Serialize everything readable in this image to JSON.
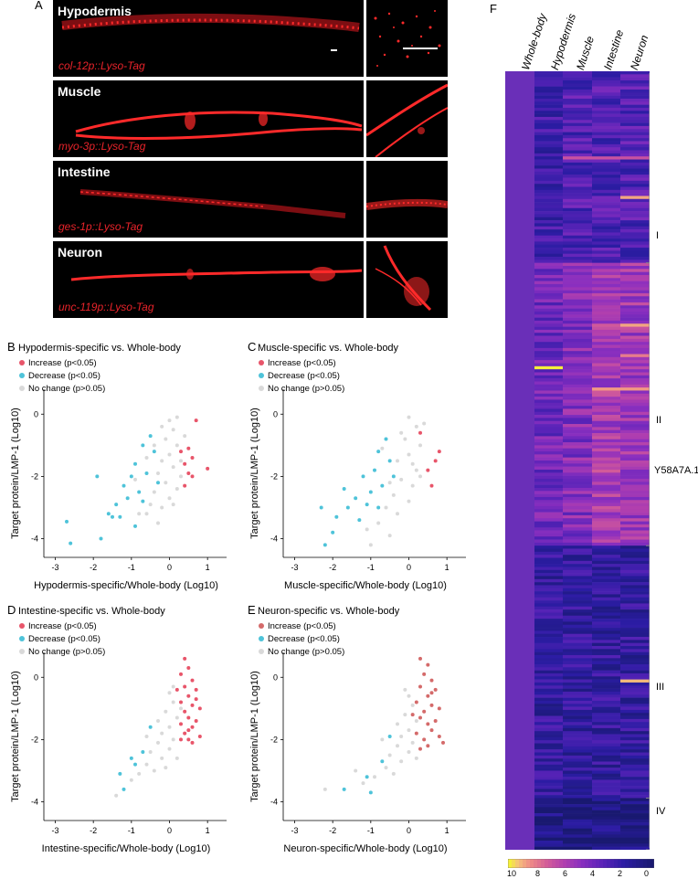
{
  "panel_letters": {
    "A": "A",
    "B": "B",
    "C": "C",
    "D": "D",
    "E": "E",
    "F": "F"
  },
  "micrographs": [
    {
      "tissue": "Hypodermis",
      "construct": "col-12p::Lyso-Tag"
    },
    {
      "tissue": "Muscle",
      "construct": "myo-3p::Lyso-Tag"
    },
    {
      "tissue": "Intestine",
      "construct": "ges-1p::Lyso-Tag"
    },
    {
      "tissue": "Neuron",
      "construct": "unc-119p::Lyso-Tag"
    }
  ],
  "colors": {
    "increase": "#e8556a",
    "increase_e": "#d46a6a",
    "decrease": "#4ec3d9",
    "nochange": "#d9d9d9",
    "lyso": "#e8232a"
  },
  "chart_data": [
    {
      "id": "B",
      "type": "scatter",
      "title": "Hypodermis-specific vs. Whole-body",
      "legend": {
        "increase": "Increase (p<0.05)",
        "decrease": "Decrease (p<0.05)",
        "nochange": "No change (p>0.05)"
      },
      "xlabel": "Hypodermis-specific/Whole-body (Log10)",
      "ylabel": "Target protein/LMP-1 (Log10)",
      "xlim": [
        -3.3,
        1.5
      ],
      "ylim": [
        -4.6,
        0.8
      ],
      "xticks": [
        -3,
        -2,
        -1,
        0,
        1
      ],
      "yticks": [
        0,
        -2,
        -4
      ],
      "series": {
        "increase": [
          [
            0.7,
            -0.2
          ],
          [
            0.5,
            -1.1
          ],
          [
            0.6,
            -1.4
          ],
          [
            0.4,
            -1.6
          ],
          [
            0.5,
            -1.9
          ],
          [
            0.6,
            -2.0
          ],
          [
            0.4,
            -2.3
          ],
          [
            1.0,
            -1.75
          ],
          [
            0.3,
            -1.2
          ]
        ],
        "decrease": [
          [
            -0.5,
            -0.7
          ],
          [
            -0.7,
            -1.0
          ],
          [
            -0.4,
            -1.2
          ],
          [
            -0.9,
            -1.6
          ],
          [
            -0.6,
            -1.9
          ],
          [
            -1.0,
            -2.0
          ],
          [
            -1.2,
            -2.3
          ],
          [
            -0.8,
            -2.5
          ],
          [
            -1.1,
            -2.7
          ],
          [
            -1.4,
            -2.9
          ],
          [
            -1.6,
            -3.2
          ],
          [
            -1.3,
            -3.3
          ],
          [
            -0.9,
            -3.6
          ],
          [
            -1.8,
            -4.0
          ],
          [
            -2.6,
            -4.15
          ],
          [
            -2.7,
            -3.45
          ],
          [
            -1.9,
            -2.0
          ],
          [
            -0.3,
            -2.2
          ],
          [
            -0.7,
            -2.8
          ],
          [
            -1.5,
            -3.3
          ]
        ],
        "nochange": [
          [
            0.0,
            -0.2
          ],
          [
            0.1,
            -0.5
          ],
          [
            -0.1,
            -0.8
          ],
          [
            0.2,
            -1.0
          ],
          [
            0.0,
            -1.3
          ],
          [
            -0.2,
            -1.5
          ],
          [
            0.1,
            -1.7
          ],
          [
            -0.3,
            -1.9
          ],
          [
            0.3,
            -2.0
          ],
          [
            -0.1,
            -2.2
          ],
          [
            0.2,
            -2.4
          ],
          [
            -0.4,
            -2.5
          ],
          [
            0.0,
            -2.7
          ],
          [
            -0.5,
            -2.9
          ],
          [
            -0.2,
            -3.0
          ],
          [
            -0.6,
            -3.2
          ],
          [
            -0.3,
            -3.5
          ],
          [
            -0.8,
            -3.2
          ],
          [
            0.4,
            -0.7
          ],
          [
            -0.2,
            -0.4
          ],
          [
            0.3,
            -1.5
          ],
          [
            -0.6,
            -1.4
          ],
          [
            0.1,
            -2.9
          ],
          [
            -0.9,
            -2.1
          ],
          [
            -0.4,
            -1.0
          ],
          [
            0.2,
            -0.1
          ]
        ]
      }
    },
    {
      "id": "C",
      "type": "scatter",
      "title": "Muscle-specific vs. Whole-body",
      "legend": {
        "increase": "Increase (p<0.05)",
        "decrease": "Decrease (p<0.05)",
        "nochange": "No change (p>0.05)"
      },
      "xlabel": "Muscle-specific/Whole-body (Log10)",
      "ylabel": "Target protein/LMP-1 (Log10)",
      "xlim": [
        -3.3,
        1.5
      ],
      "ylim": [
        -4.6,
        0.8
      ],
      "xticks": [
        -3,
        -2,
        -1,
        0,
        1
      ],
      "yticks": [
        0,
        -2,
        -4
      ],
      "series": {
        "increase": [
          [
            0.8,
            -1.2
          ],
          [
            0.5,
            -1.8
          ],
          [
            0.6,
            -2.3
          ],
          [
            0.3,
            -0.6
          ],
          [
            0.7,
            -1.5
          ]
        ],
        "decrease": [
          [
            -0.6,
            -0.8
          ],
          [
            -0.8,
            -1.2
          ],
          [
            -0.5,
            -1.5
          ],
          [
            -0.9,
            -1.8
          ],
          [
            -1.2,
            -2.0
          ],
          [
            -0.7,
            -2.3
          ],
          [
            -1.0,
            -2.5
          ],
          [
            -1.4,
            -2.7
          ],
          [
            -1.6,
            -3.0
          ],
          [
            -1.9,
            -3.3
          ],
          [
            -1.3,
            -3.4
          ],
          [
            -2.0,
            -3.8
          ],
          [
            -2.2,
            -4.2
          ],
          [
            -0.8,
            -3.0
          ],
          [
            -1.1,
            -2.9
          ],
          [
            -1.7,
            -2.4
          ],
          [
            -0.4,
            -2.0
          ],
          [
            -2.3,
            -3.0
          ]
        ],
        "nochange": [
          [
            0.0,
            -0.1
          ],
          [
            0.2,
            -0.4
          ],
          [
            -0.1,
            -0.8
          ],
          [
            0.3,
            -1.0
          ],
          [
            0.0,
            -1.3
          ],
          [
            -0.3,
            -1.5
          ],
          [
            0.2,
            -1.8
          ],
          [
            -0.2,
            -2.1
          ],
          [
            0.1,
            -2.3
          ],
          [
            -0.4,
            -2.6
          ],
          [
            0.0,
            -2.8
          ],
          [
            -0.6,
            -3.0
          ],
          [
            -0.3,
            -3.2
          ],
          [
            -0.8,
            -3.5
          ],
          [
            -1.1,
            -3.7
          ],
          [
            -0.5,
            -3.9
          ],
          [
            -1.0,
            -4.2
          ],
          [
            0.4,
            -0.3
          ],
          [
            -0.2,
            -0.6
          ],
          [
            0.1,
            -1.6
          ],
          [
            -0.7,
            -1.1
          ],
          [
            -0.5,
            -2.2
          ],
          [
            0.3,
            -2.0
          ]
        ]
      }
    },
    {
      "id": "D",
      "type": "scatter",
      "title": "Intestine-specific vs. Whole-body",
      "legend": {
        "increase": "Increase (p<0.05)",
        "decrease": "Decrease (p<0.05)",
        "nochange": "No change (p>0.05)"
      },
      "xlabel": "Intestine-specific/Whole-body (Log10)",
      "ylabel": "Target protein/LMP-1 (Log10)",
      "xlim": [
        -3.3,
        1.5
      ],
      "ylim": [
        -4.6,
        0.8
      ],
      "xticks": [
        -3,
        -2,
        -1,
        0,
        1
      ],
      "yticks": [
        0,
        -2,
        -4
      ],
      "series": {
        "increase": [
          [
            0.4,
            0.6
          ],
          [
            0.5,
            0.3
          ],
          [
            0.3,
            0.1
          ],
          [
            0.6,
            -0.1
          ],
          [
            0.4,
            -0.3
          ],
          [
            0.7,
            -0.4
          ],
          [
            0.5,
            -0.6
          ],
          [
            0.3,
            -0.8
          ],
          [
            0.6,
            -0.9
          ],
          [
            0.8,
            -1.0
          ],
          [
            0.4,
            -1.1
          ],
          [
            0.5,
            -1.3
          ],
          [
            0.7,
            -1.4
          ],
          [
            0.3,
            -1.5
          ],
          [
            0.6,
            -1.6
          ],
          [
            0.4,
            -1.8
          ],
          [
            0.8,
            -1.9
          ],
          [
            0.5,
            -2.0
          ],
          [
            0.6,
            -2.1
          ],
          [
            0.3,
            -2.0
          ],
          [
            0.2,
            -0.4
          ],
          [
            0.7,
            -0.7
          ],
          [
            0.5,
            -1.7
          ]
        ],
        "decrease": [
          [
            -1.3,
            -3.1
          ],
          [
            -1.2,
            -3.6
          ],
          [
            -0.9,
            -2.8
          ],
          [
            -0.7,
            -2.4
          ],
          [
            -0.5,
            -1.6
          ],
          [
            -1.0,
            -2.6
          ]
        ],
        "nochange": [
          [
            0.0,
            -0.5
          ],
          [
            0.1,
            -0.8
          ],
          [
            -0.1,
            -1.1
          ],
          [
            0.2,
            -1.3
          ],
          [
            0.0,
            -1.6
          ],
          [
            -0.2,
            -1.8
          ],
          [
            0.1,
            -2.0
          ],
          [
            -0.3,
            -2.1
          ],
          [
            0.0,
            -2.3
          ],
          [
            -0.5,
            -2.4
          ],
          [
            -0.2,
            -2.6
          ],
          [
            -0.6,
            -2.8
          ],
          [
            -0.4,
            -3.0
          ],
          [
            -0.8,
            -3.1
          ],
          [
            -1.0,
            -3.3
          ],
          [
            -1.4,
            -3.8
          ],
          [
            0.2,
            -2.6
          ],
          [
            -0.1,
            -2.9
          ],
          [
            0.1,
            -0.3
          ],
          [
            -0.3,
            -1.4
          ],
          [
            0.3,
            -1.0
          ],
          [
            -0.6,
            -1.9
          ]
        ]
      }
    },
    {
      "id": "E",
      "type": "scatter",
      "title": "Neuron-specific vs. Whole-body",
      "legend": {
        "increase": "Increase (p<0.05)",
        "decrease": "Decrease (p<0.05)",
        "nochange": "No change (p>0.05)"
      },
      "xlabel": "Neuron-specific/Whole-body (Log10)",
      "ylabel": "Target protein/LMP-1 (Log10)",
      "xlim": [
        -3.3,
        1.5
      ],
      "ylim": [
        -4.6,
        0.8
      ],
      "xticks": [
        -3,
        -2,
        -1,
        0,
        1
      ],
      "yticks": [
        0,
        -2,
        -4
      ],
      "series": {
        "increase": [
          [
            0.3,
            0.6
          ],
          [
            0.5,
            0.4
          ],
          [
            0.4,
            0.1
          ],
          [
            0.6,
            -0.1
          ],
          [
            0.3,
            -0.3
          ],
          [
            0.7,
            -0.4
          ],
          [
            0.5,
            -0.6
          ],
          [
            0.2,
            -0.8
          ],
          [
            0.6,
            -0.9
          ],
          [
            0.8,
            -1.0
          ],
          [
            0.4,
            -1.1
          ],
          [
            0.3,
            -1.3
          ],
          [
            0.7,
            -1.4
          ],
          [
            0.5,
            -1.5
          ],
          [
            0.6,
            -1.7
          ],
          [
            0.2,
            -1.8
          ],
          [
            0.8,
            -1.9
          ],
          [
            0.4,
            -2.0
          ],
          [
            0.5,
            -2.2
          ],
          [
            0.3,
            -2.3
          ],
          [
            0.9,
            -2.1
          ],
          [
            0.1,
            -1.2
          ],
          [
            0.6,
            -0.5
          ]
        ],
        "decrease": [
          [
            -1.7,
            -3.6
          ],
          [
            -1.1,
            -3.2
          ],
          [
            -1.0,
            -3.7
          ],
          [
            -0.7,
            -2.7
          ],
          [
            -0.5,
            -1.9
          ]
        ],
        "nochange": [
          [
            0.0,
            -0.6
          ],
          [
            0.1,
            -0.9
          ],
          [
            -0.1,
            -1.2
          ],
          [
            0.2,
            -1.4
          ],
          [
            0.0,
            -1.7
          ],
          [
            -0.2,
            -1.9
          ],
          [
            0.1,
            -2.1
          ],
          [
            -0.3,
            -2.2
          ],
          [
            0.0,
            -2.4
          ],
          [
            -0.5,
            -2.5
          ],
          [
            -0.2,
            -2.7
          ],
          [
            -0.6,
            -2.9
          ],
          [
            -0.4,
            -3.1
          ],
          [
            -0.9,
            -3.2
          ],
          [
            -1.2,
            -3.4
          ],
          [
            -2.2,
            -3.6
          ],
          [
            -1.4,
            -3.0
          ],
          [
            0.2,
            -2.6
          ],
          [
            -0.1,
            -0.4
          ],
          [
            -0.3,
            -1.5
          ],
          [
            -0.7,
            -2.0
          ]
        ]
      }
    },
    {
      "id": "F",
      "type": "heatmap",
      "columns": [
        "Whole-body",
        "Hypodermis",
        "Muscle",
        "Intestine",
        "Neuron"
      ],
      "clusters": [
        {
          "label": "I",
          "start": 0,
          "end": 62
        },
        {
          "label": "II",
          "start": 63,
          "end": 155
        },
        {
          "label": "III",
          "start": 156,
          "end": 238
        },
        {
          "label": "IV",
          "start": 239,
          "end": 255
        }
      ],
      "annotation": {
        "label": "Y58A7A.1",
        "row": 97
      },
      "scale": {
        "ticks": [
          10,
          8,
          6,
          4,
          2,
          0
        ],
        "min": 0,
        "max": 10
      }
    }
  ]
}
